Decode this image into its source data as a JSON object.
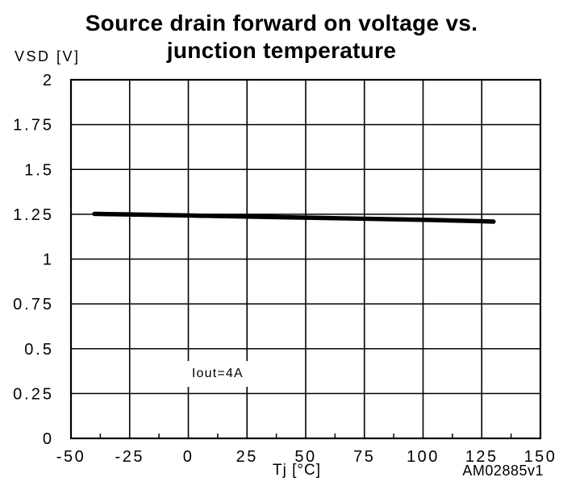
{
  "page": {
    "background": "#ffffff"
  },
  "chart_data": {
    "type": "line",
    "title": "Source drain forward on voltage vs. junction temperature",
    "title_lines": [
      "Source drain forward on voltage vs.",
      "junction temperature"
    ],
    "ylabel": "VSD [V]",
    "xlabel": "Tj [°C]",
    "watermark": "AM02885v1",
    "xlim": [
      -50,
      150
    ],
    "ylim": [
      0,
      2
    ],
    "xticks": [
      -50,
      -25,
      0,
      25,
      50,
      75,
      100,
      125,
      150
    ],
    "xtick_labels": [
      "-50",
      "-25",
      "0",
      "25",
      "50",
      "75",
      "100",
      "125",
      "150"
    ],
    "yticks": [
      0,
      0.25,
      0.5,
      0.75,
      1,
      1.25,
      1.5,
      1.75,
      2
    ],
    "ytick_labels": [
      "0",
      "0.25",
      "0.5",
      "0.75",
      "1",
      "1.25",
      "1.5",
      "1.75",
      "2"
    ],
    "x_minor_tick_step": 12.5,
    "grid": true,
    "legend_position": "none",
    "annotation": {
      "text": "Iout=4A",
      "x": 12.5,
      "y": 0.36
    },
    "series": [
      {
        "name": "Iout=4A",
        "color": "#000000",
        "width": 5.5,
        "points": [
          [
            -40,
            1.252
          ],
          [
            -25,
            1.249
          ],
          [
            0,
            1.243
          ],
          [
            25,
            1.237
          ],
          [
            50,
            1.231
          ],
          [
            75,
            1.225
          ],
          [
            100,
            1.219
          ],
          [
            125,
            1.211
          ],
          [
            130,
            1.209
          ]
        ]
      }
    ],
    "colors": {
      "axis": "#000000",
      "grid": "#000000",
      "text": "#000000"
    }
  }
}
